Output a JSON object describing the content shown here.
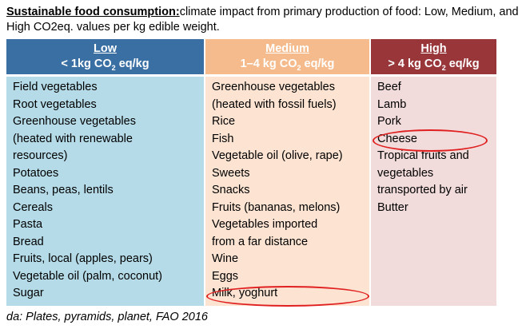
{
  "title": {
    "bold": "Sustainable food consumption:",
    "rest": "climate impact from primary  production of food: Low, Medium,  and High  CO2eq. values per kg edible  weight."
  },
  "columns": {
    "low": {
      "name": "Low",
      "range_pre": "< 1kg CO",
      "range_sub": "2",
      "range_post": " eq/kg",
      "items": [
        "Field vegetables",
        "Root vegetables",
        "Greenhouse  vegetables",
        "(heated with renewable",
        "resources)",
        "Potatoes",
        "Beans, peas, lentils",
        "Cereals",
        "Pasta",
        "Bread",
        "Fruits, local (apples, pears)",
        "Vegetable oil (palm, coconut)",
        "Sugar"
      ]
    },
    "medium": {
      "name": "Medium",
      "range_pre": "1–4 kg CO",
      "range_sub": "2",
      "range_post": " eq/kg",
      "items": [
        "Greenhouse  vegetables",
        "(heated with fossil fuels)",
        "Rice",
        "Fish",
        "Vegetable oil (olive, rape)",
        "Sweets",
        "Snacks",
        "Fruits (bananas, melons)",
        "Vegetables imported",
        "from a far distance",
        "Wine",
        "Eggs",
        "Milk, yoghurt"
      ]
    },
    "high": {
      "name": "High",
      "range_pre": "> 4 kg CO",
      "range_sub": "2",
      "range_post": " eq/kg",
      "items": [
        "Beef",
        "Lamb",
        "Pork",
        "Cheese",
        "Tropical fruits and",
        "vegetables",
        "transported by air",
        "Butter"
      ]
    }
  },
  "colors": {
    "low_header": "#3a6fa3",
    "low_body": "#b5dbe8",
    "medium_header": "#f6bb8c",
    "medium_body": "#fde4d2",
    "high_header": "#98363a",
    "high_body": "#f2dcdb",
    "highlight_ellipse": "#e02020"
  },
  "highlighted_items": [
    "Cheese",
    "Milk, yoghurt"
  ],
  "source": "da: Plates, pyramids, planet, FAO 2016"
}
